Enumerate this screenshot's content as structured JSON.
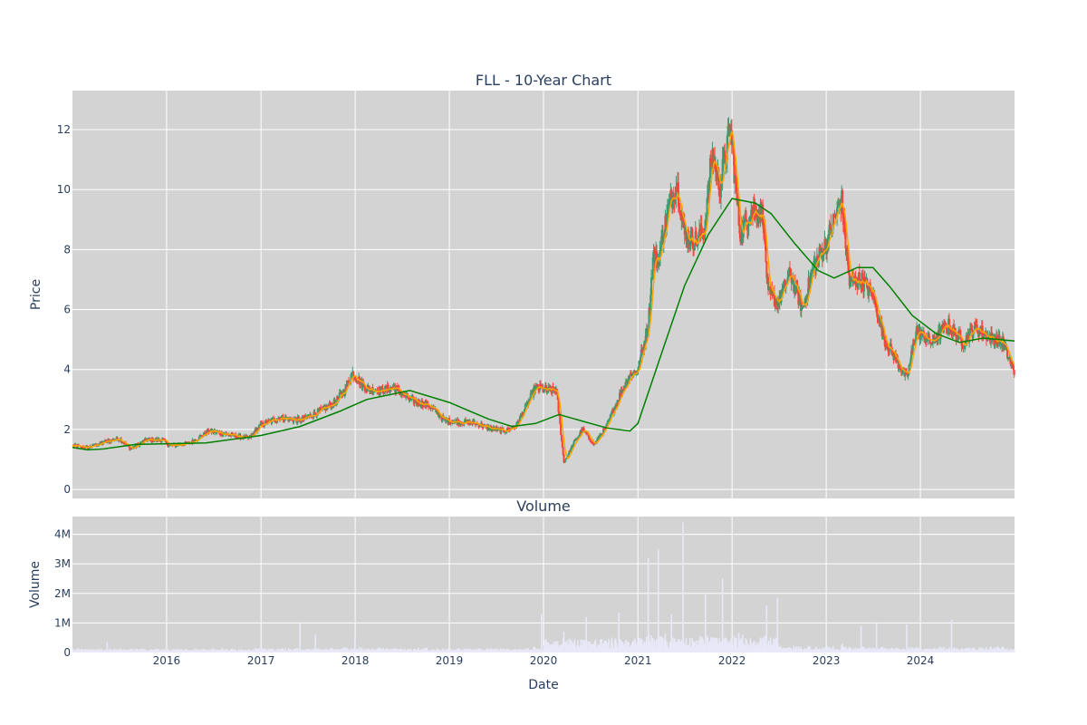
{
  "colors": {
    "plot_bg": "#d3d3d3",
    "increasing": "#3d9970",
    "decreasing": "#ff4136",
    "ma_short": "#ffa500",
    "ma_long": "#008000",
    "volume": "#e8e8f8"
  },
  "chart_data": [
    {
      "type": "candlestick",
      "title": "FLL - 10-Year Chart",
      "xlabel": "",
      "ylabel": "Price",
      "xlim": [
        "2015-01-01",
        "2024-12-31"
      ],
      "ylim": [
        -0.3,
        13.3
      ],
      "yticks": [
        0,
        2,
        4,
        6,
        8,
        10,
        12
      ],
      "grid": true,
      "price_path": [
        [
          "2015-01-01",
          1.45
        ],
        [
          "2015-03-01",
          1.4
        ],
        [
          "2015-05-15",
          1.6
        ],
        [
          "2015-07-01",
          1.7
        ],
        [
          "2015-08-15",
          1.35
        ],
        [
          "2015-10-15",
          1.65
        ],
        [
          "2015-12-15",
          1.65
        ],
        [
          "2016-01-15",
          1.45
        ],
        [
          "2016-04-01",
          1.55
        ],
        [
          "2016-06-15",
          1.95
        ],
        [
          "2016-09-15",
          1.8
        ],
        [
          "2016-11-15",
          1.7
        ],
        [
          "2017-01-01",
          2.15
        ],
        [
          "2017-03-15",
          2.4
        ],
        [
          "2017-06-01",
          2.3
        ],
        [
          "2017-08-15",
          2.6
        ],
        [
          "2017-10-15",
          2.9
        ],
        [
          "2017-11-20",
          3.3
        ],
        [
          "2017-12-20",
          3.9
        ],
        [
          "2018-02-15",
          3.35
        ],
        [
          "2018-04-15",
          3.3
        ],
        [
          "2018-06-01",
          3.4
        ],
        [
          "2018-08-01",
          3.0
        ],
        [
          "2018-10-15",
          2.8
        ],
        [
          "2018-12-15",
          2.3
        ],
        [
          "2019-02-15",
          2.25
        ],
        [
          "2019-04-15",
          2.2
        ],
        [
          "2019-06-01",
          2.05
        ],
        [
          "2019-08-01",
          1.95
        ],
        [
          "2019-09-15",
          2.1
        ],
        [
          "2019-10-15",
          2.6
        ],
        [
          "2019-12-01",
          3.4
        ],
        [
          "2020-01-15",
          3.3
        ],
        [
          "2020-02-20",
          3.3
        ],
        [
          "2020-03-20",
          0.9
        ],
        [
          "2020-05-01",
          1.6
        ],
        [
          "2020-06-01",
          2.0
        ],
        [
          "2020-07-15",
          1.5
        ],
        [
          "2020-09-01",
          2.1
        ],
        [
          "2020-10-20",
          3.1
        ],
        [
          "2020-12-01",
          3.8
        ],
        [
          "2021-01-01",
          4.0
        ],
        [
          "2021-02-10",
          5.5
        ],
        [
          "2021-03-01",
          7.8
        ],
        [
          "2021-03-20",
          7.6
        ],
        [
          "2021-05-01",
          9.5
        ],
        [
          "2021-06-01",
          10.2
        ],
        [
          "2021-07-01",
          8.5
        ],
        [
          "2021-08-15",
          8.3
        ],
        [
          "2021-09-15",
          8.6
        ],
        [
          "2021-10-15",
          11.2
        ],
        [
          "2021-11-15",
          10.1
        ],
        [
          "2021-12-25",
          12.1
        ],
        [
          "2022-02-01",
          8.5
        ],
        [
          "2022-03-15",
          9.3
        ],
        [
          "2022-05-01",
          9.2
        ],
        [
          "2022-05-20",
          6.5
        ],
        [
          "2022-07-01",
          6.3
        ],
        [
          "2022-08-15",
          7.2
        ],
        [
          "2022-10-01",
          6.0
        ],
        [
          "2022-11-15",
          7.5
        ],
        [
          "2023-01-01",
          8.2
        ],
        [
          "2023-03-01",
          9.7
        ],
        [
          "2023-04-01",
          6.9
        ],
        [
          "2023-05-15",
          7.0
        ],
        [
          "2023-07-01",
          6.5
        ],
        [
          "2023-08-15",
          5.0
        ],
        [
          "2023-10-01",
          4.3
        ],
        [
          "2023-11-10",
          3.7
        ],
        [
          "2023-12-15",
          5.3
        ],
        [
          "2024-02-15",
          4.9
        ],
        [
          "2024-04-15",
          5.5
        ],
        [
          "2024-06-15",
          4.9
        ],
        [
          "2024-08-01",
          5.4
        ],
        [
          "2024-10-01",
          5.05
        ],
        [
          "2024-11-15",
          4.9
        ],
        [
          "2024-12-31",
          3.9
        ]
      ],
      "ma_long": [
        [
          "2015-01-01",
          1.4
        ],
        [
          "2015-03-01",
          1.32
        ],
        [
          "2015-05-01",
          1.35
        ],
        [
          "2015-09-01",
          1.5
        ],
        [
          "2016-06-01",
          1.55
        ],
        [
          "2017-01-01",
          1.8
        ],
        [
          "2017-06-01",
          2.1
        ],
        [
          "2017-11-01",
          2.6
        ],
        [
          "2018-02-15",
          3.0
        ],
        [
          "2018-08-01",
          3.3
        ],
        [
          "2019-01-01",
          2.9
        ],
        [
          "2019-06-01",
          2.35
        ],
        [
          "2019-09-01",
          2.1
        ],
        [
          "2019-12-01",
          2.2
        ],
        [
          "2020-03-01",
          2.5
        ],
        [
          "2020-05-01",
          2.35
        ],
        [
          "2020-09-01",
          2.05
        ],
        [
          "2020-12-01",
          1.95
        ],
        [
          "2021-01-01",
          2.2
        ],
        [
          "2021-04-01",
          4.5
        ],
        [
          "2021-07-01",
          6.8
        ],
        [
          "2021-10-01",
          8.5
        ],
        [
          "2022-01-01",
          9.7
        ],
        [
          "2022-04-01",
          9.55
        ],
        [
          "2022-06-01",
          9.2
        ],
        [
          "2022-09-01",
          8.2
        ],
        [
          "2022-12-01",
          7.3
        ],
        [
          "2023-02-01",
          7.05
        ],
        [
          "2023-05-01",
          7.4
        ],
        [
          "2023-07-01",
          7.4
        ],
        [
          "2023-09-01",
          6.8
        ],
        [
          "2023-12-01",
          5.8
        ],
        [
          "2024-03-01",
          5.2
        ],
        [
          "2024-06-01",
          4.9
        ],
        [
          "2024-09-01",
          5.05
        ],
        [
          "2024-12-31",
          4.95
        ]
      ]
    },
    {
      "type": "bar",
      "title": "Volume",
      "xlabel": "Date",
      "ylabel": "Volume",
      "ylim": [
        0,
        4600000
      ],
      "yticks": [
        0,
        1000000,
        2000000,
        3000000,
        4000000
      ],
      "ytick_labels": [
        "0",
        "1M",
        "2M",
        "3M",
        "4M"
      ],
      "xticks": [
        "2016-01-01",
        "2017-01-01",
        "2018-01-01",
        "2019-01-01",
        "2020-01-01",
        "2021-01-01",
        "2022-01-01",
        "2023-01-01",
        "2024-01-01"
      ],
      "xtick_labels": [
        "2016",
        "2017",
        "2018",
        "2019",
        "2020",
        "2021",
        "2022",
        "2023",
        "2024"
      ],
      "spikes": [
        [
          "2015-05-15",
          350000
        ],
        [
          "2017-06-01",
          1000000
        ],
        [
          "2017-08-01",
          600000
        ],
        [
          "2018-01-01",
          500000
        ],
        [
          "2019-12-25",
          1300000
        ],
        [
          "2020-03-20",
          700000
        ],
        [
          "2020-06-15",
          1200000
        ],
        [
          "2020-10-20",
          1350000
        ],
        [
          "2021-02-10",
          3200000
        ],
        [
          "2021-03-20",
          3500000
        ],
        [
          "2021-05-10",
          1300000
        ],
        [
          "2021-06-25",
          4400000
        ],
        [
          "2021-09-20",
          2000000
        ],
        [
          "2021-11-25",
          2500000
        ],
        [
          "2022-05-15",
          1600000
        ],
        [
          "2022-06-25",
          1850000
        ],
        [
          "2023-05-15",
          900000
        ],
        [
          "2023-07-15",
          1000000
        ],
        [
          "2023-11-10",
          950000
        ],
        [
          "2024-05-01",
          1100000
        ]
      ]
    }
  ]
}
